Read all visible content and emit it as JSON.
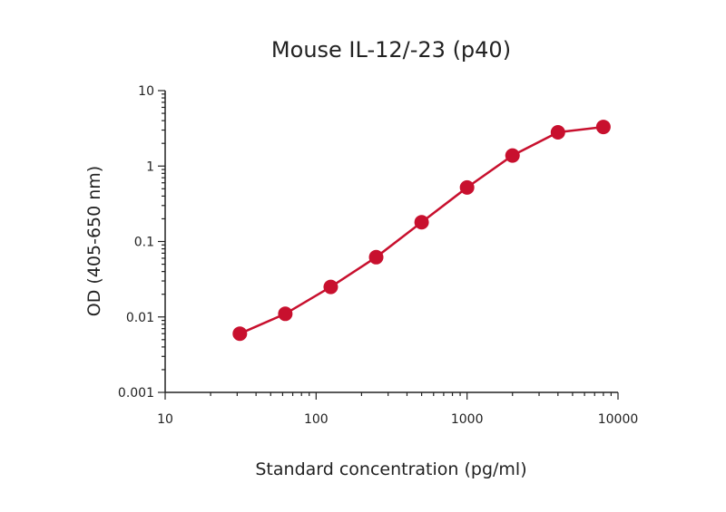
{
  "chart_data": {
    "type": "line",
    "title": "Mouse IL-12/-23 (p40)",
    "xlabel": "Standard concentration (pg/ml)",
    "ylabel": "OD (405-650 nm)",
    "xscale": "log",
    "yscale": "log",
    "xlim": [
      10,
      10000
    ],
    "ylim": [
      0.001,
      10
    ],
    "xticks": [
      "10",
      "100",
      "1000",
      "10000"
    ],
    "yticks": [
      "0.001",
      "0.01",
      "0.1",
      "1",
      "10"
    ],
    "grid": false,
    "legend": "none",
    "series": [
      {
        "color": "#c8102e",
        "x": [
          31.25,
          62.5,
          125,
          250,
          500,
          1000,
          2000,
          4000,
          8000
        ],
        "y": [
          0.006,
          0.011,
          0.025,
          0.062,
          0.18,
          0.52,
          1.38,
          2.8,
          3.3
        ]
      }
    ]
  }
}
